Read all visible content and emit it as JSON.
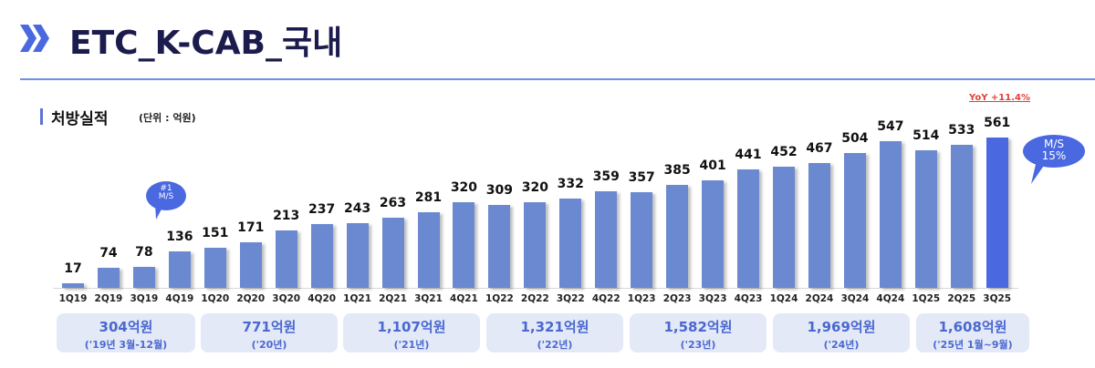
{
  "header": {
    "title": "ETC_K-CAB_국내",
    "icon": "double-chevron-right-icon",
    "accent_color": "#4a68e0"
  },
  "section": {
    "title": "처방실적",
    "unit": "(단위 : 억원)"
  },
  "annotations": {
    "yoy": "YoY +11.4%",
    "bubble_first": {
      "line1": "#1",
      "line2": "M/S"
    },
    "bubble_last": {
      "line1": "M/S",
      "line2": "15%"
    }
  },
  "summaries": [
    {
      "amount": "304억원",
      "period": "('19년 3월-12월)"
    },
    {
      "amount": "771억원",
      "period": "('20년)"
    },
    {
      "amount": "1,107억원",
      "period": "('21년)"
    },
    {
      "amount": "1,321억원",
      "period": "('22년)"
    },
    {
      "amount": "1,582억원",
      "period": "('23년)"
    },
    {
      "amount": "1,969억원",
      "period": "('24년)"
    },
    {
      "amount": "1,608억원",
      "period": "('25년 1월~9월)"
    }
  ],
  "chart_data": {
    "type": "bar",
    "title": "처방실적",
    "subtitle": "(단위 : 억원)",
    "xlabel": "",
    "ylabel": "억원",
    "categories": [
      "1Q19",
      "2Q19",
      "3Q19",
      "4Q19",
      "1Q20",
      "2Q20",
      "3Q20",
      "4Q20",
      "1Q21",
      "2Q21",
      "3Q21",
      "4Q21",
      "1Q22",
      "2Q22",
      "3Q22",
      "4Q22",
      "1Q23",
      "2Q23",
      "3Q23",
      "4Q23",
      "1Q24",
      "2Q24",
      "3Q24",
      "4Q24",
      "1Q25",
      "2Q25",
      "3Q25"
    ],
    "values": [
      17,
      74,
      78,
      136,
      151,
      171,
      213,
      237,
      243,
      263,
      281,
      320,
      309,
      320,
      332,
      359,
      357,
      385,
      401,
      441,
      452,
      467,
      504,
      547,
      514,
      533,
      561
    ],
    "labels": [
      "17",
      "74",
      "78",
      "136",
      "151",
      "171",
      "213",
      "237",
      "243",
      "263",
      "281",
      "320",
      "309",
      "320",
      "332",
      "359",
      "357",
      "385",
      "401",
      "441",
      "452",
      "467",
      "504",
      "547",
      "514",
      "533",
      "561"
    ],
    "highlight_index": 26,
    "colors": {
      "bar": "#6a89d0",
      "highlight": "#4a68e0",
      "yoy": "#e0413a"
    },
    "annotations": [
      "YoY +11.4%",
      "#1 M/S",
      "M/S 15%"
    ],
    "yearly_totals": [
      {
        "label": "'19년 3월-12월",
        "value": 304
      },
      {
        "label": "'20년",
        "value": 771
      },
      {
        "label": "'21년",
        "value": 1107
      },
      {
        "label": "'22년",
        "value": 1321
      },
      {
        "label": "'23년",
        "value": 1582
      },
      {
        "label": "'24년",
        "value": 1969
      },
      {
        "label": "'25년 1월~9월",
        "value": 1608
      }
    ],
    "grid": false,
    "legend": null
  }
}
